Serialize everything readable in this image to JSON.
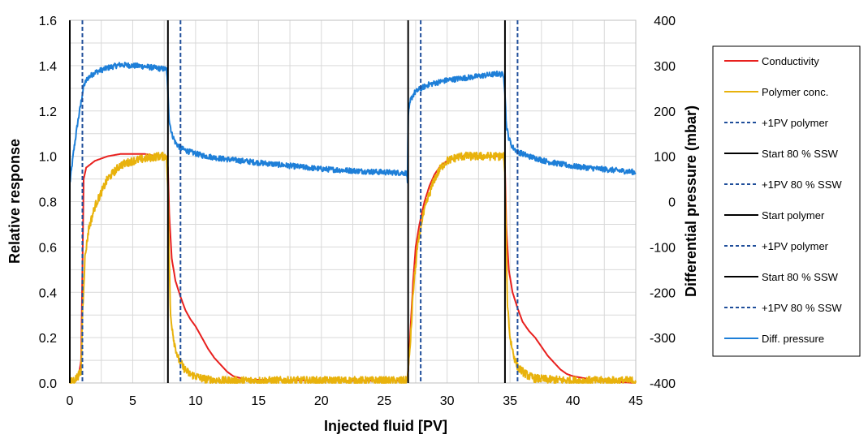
{
  "chart_data": {
    "type": "line",
    "xlabel": "Injected fluid [PV]",
    "ylabel": "Relative response",
    "y2label": "Differential pressure  (mbar)",
    "xlim": [
      0,
      45
    ],
    "ylim": [
      0,
      1.6
    ],
    "y2lim": [
      -400,
      400
    ],
    "x_ticks": [
      0,
      5,
      10,
      15,
      20,
      25,
      30,
      35,
      40,
      45
    ],
    "y_ticks": [
      0.0,
      0.2,
      0.4,
      0.6,
      0.8,
      1.0,
      1.2,
      1.4,
      1.6
    ],
    "y_tick_labels": [
      "0.0",
      "0.2",
      "0.4",
      "0.6",
      "0.8",
      "1.0",
      "1.2",
      "1.4",
      "1.6"
    ],
    "y2_ticks": [
      -400,
      -300,
      -200,
      -100,
      0,
      100,
      200,
      300,
      400
    ],
    "grid": true,
    "legend_position": "right",
    "colors": {
      "conductivity": "#e8201e",
      "polymer": "#e8b20c",
      "pressure": "#1e7fd8",
      "marker_dashed": "#1f4e9a",
      "marker_solid": "#000000",
      "grid": "#d9d9d9"
    },
    "legend": [
      {
        "label": "Conductivity",
        "style": "conductivity"
      },
      {
        "label": "Polymer conc.",
        "style": "polymer"
      },
      {
        "label": "+1PV polymer",
        "style": "dashed"
      },
      {
        "label": "Start 80 % SSW",
        "style": "solid"
      },
      {
        "label": "+1PV 80 % SSW",
        "style": "dashed"
      },
      {
        "label": "Start polymer",
        "style": "solid"
      },
      {
        "label": "+1PV polymer",
        "style": "dashed"
      },
      {
        "label": "Start 80 % SSW",
        "style": "solid"
      },
      {
        "label": "+1PV 80 % SSW",
        "style": "dashed"
      },
      {
        "label": "Diff. pressure",
        "style": "pressure"
      }
    ],
    "vertical_markers": [
      {
        "x": 0.0,
        "style": "solid",
        "label": "Start polymer"
      },
      {
        "x": 1.0,
        "style": "dashed",
        "label": "+1PV polymer"
      },
      {
        "x": 7.8,
        "style": "solid",
        "label": "Start 80 % SSW"
      },
      {
        "x": 8.8,
        "style": "dashed",
        "label": "+1PV 80 % SSW"
      },
      {
        "x": 26.9,
        "style": "solid",
        "label": "Start polymer"
      },
      {
        "x": 27.9,
        "style": "dashed",
        "label": "+1PV polymer"
      },
      {
        "x": 34.6,
        "style": "solid",
        "label": "Start 80 % SSW"
      },
      {
        "x": 35.6,
        "style": "dashed",
        "label": "+1PV 80 % SSW"
      }
    ],
    "series": [
      {
        "name": "Conductivity",
        "axis": "left",
        "color_key": "conductivity",
        "x": [
          0.0,
          0.5,
          0.7,
          0.9,
          1.0,
          1.1,
          1.3,
          2.0,
          3.0,
          4.0,
          5.0,
          6.0,
          7.0,
          7.7,
          7.8,
          7.9,
          8.1,
          8.4,
          8.8,
          9.2,
          9.6,
          10.0,
          10.5,
          11.0,
          11.5,
          12.0,
          12.5,
          13.0,
          14.0,
          20.0,
          26.8,
          26.9,
          27.1,
          27.3,
          27.5,
          27.8,
          28.2,
          28.6,
          29.0,
          29.5,
          30.0,
          30.5,
          31.0,
          32.0,
          33.0,
          34.0,
          34.5,
          34.6,
          34.7,
          34.9,
          35.2,
          35.6,
          36.0,
          36.5,
          37.0,
          37.5,
          38.0,
          38.5,
          39.0,
          39.5,
          40.0,
          41.0,
          42.0,
          45.0
        ],
        "values": [
          0.0,
          0.01,
          0.03,
          0.1,
          0.5,
          0.9,
          0.95,
          0.98,
          1.0,
          1.01,
          1.01,
          1.01,
          1.0,
          1.0,
          0.95,
          0.75,
          0.55,
          0.45,
          0.38,
          0.32,
          0.28,
          0.25,
          0.2,
          0.15,
          0.11,
          0.08,
          0.05,
          0.03,
          0.015,
          0.01,
          0.01,
          0.05,
          0.25,
          0.45,
          0.6,
          0.7,
          0.8,
          0.87,
          0.92,
          0.96,
          0.98,
          0.99,
          1.0,
          1.0,
          1.0,
          1.0,
          1.0,
          0.95,
          0.7,
          0.5,
          0.4,
          0.33,
          0.27,
          0.23,
          0.2,
          0.16,
          0.12,
          0.09,
          0.06,
          0.04,
          0.03,
          0.02,
          0.01,
          0.0
        ]
      },
      {
        "name": "Polymer conc.",
        "axis": "left",
        "color_key": "polymer",
        "noise": 0.018,
        "x": [
          0.0,
          0.5,
          0.9,
          1.0,
          1.2,
          1.5,
          2.0,
          2.5,
          3.0,
          3.5,
          4.0,
          5.0,
          6.0,
          7.0,
          7.7,
          7.8,
          7.9,
          8.0,
          8.3,
          8.6,
          9.0,
          9.5,
          10.0,
          10.5,
          11.0,
          12.0,
          14.0,
          20.0,
          26.8,
          26.9,
          27.1,
          27.3,
          27.6,
          28.0,
          28.5,
          29.0,
          29.5,
          30.0,
          31.0,
          32.0,
          33.0,
          34.0,
          34.5,
          34.6,
          34.7,
          34.8,
          35.0,
          35.3,
          35.6,
          36.0,
          36.5,
          37.0,
          38.0,
          40.0,
          42.0,
          45.0
        ],
        "values": [
          0.0,
          0.02,
          0.05,
          0.3,
          0.55,
          0.68,
          0.78,
          0.84,
          0.9,
          0.93,
          0.96,
          0.98,
          0.99,
          1.0,
          1.0,
          0.85,
          0.55,
          0.3,
          0.18,
          0.11,
          0.07,
          0.04,
          0.03,
          0.02,
          0.015,
          0.01,
          0.01,
          0.01,
          0.01,
          0.05,
          0.2,
          0.4,
          0.58,
          0.72,
          0.82,
          0.9,
          0.95,
          0.98,
          1.0,
          1.0,
          1.0,
          1.0,
          1.0,
          0.9,
          0.6,
          0.35,
          0.2,
          0.12,
          0.07,
          0.05,
          0.03,
          0.02,
          0.015,
          0.01,
          0.01,
          0.01
        ]
      },
      {
        "name": "Diff. pressure",
        "axis": "right",
        "color_key": "pressure",
        "noise": 6,
        "x": [
          0.0,
          0.3,
          0.6,
          0.9,
          1.1,
          1.4,
          2.0,
          3.0,
          4.0,
          5.0,
          6.0,
          7.0,
          7.7,
          7.8,
          7.9,
          8.1,
          8.4,
          8.8,
          9.5,
          10.5,
          12.0,
          15.0,
          20.0,
          24.0,
          26.8,
          26.85,
          26.9,
          27.1,
          27.4,
          27.8,
          28.5,
          30.0,
          32.0,
          34.0,
          34.5,
          34.6,
          34.7,
          34.9,
          35.2,
          35.6,
          36.5,
          38.0,
          40.0,
          43.0,
          45.0
        ],
        "values": [
          40,
          110,
          170,
          220,
          255,
          272,
          285,
          295,
          302,
          300,
          298,
          294,
          292,
          240,
          180,
          150,
          130,
          118,
          110,
          102,
          95,
          86,
          72,
          66,
          63,
          40,
          190,
          225,
          240,
          248,
          258,
          268,
          275,
          282,
          280,
          240,
          170,
          140,
          120,
          110,
          100,
          88,
          78,
          70,
          65
        ]
      }
    ]
  }
}
